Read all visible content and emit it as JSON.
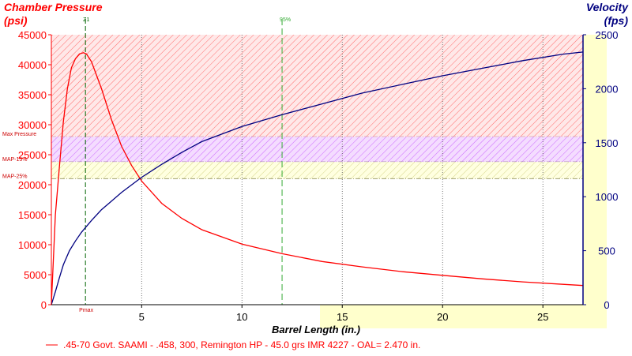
{
  "chart_data": {
    "type": "line",
    "left_axis": {
      "title_line1": "Chamber Pressure",
      "title_line2": "(psi)",
      "range": [
        0,
        45000
      ],
      "ticks": [
        0,
        5000,
        10000,
        15000,
        20000,
        25000,
        30000,
        35000,
        40000,
        45000
      ],
      "tick_labels": [
        "0",
        "5000",
        "10000",
        "15000",
        "20000",
        "25000",
        "30000",
        "35000",
        "40000",
        "45000"
      ],
      "color": "#ff0000"
    },
    "right_axis": {
      "title_line1": "Velocity",
      "title_line2": "(fps)",
      "range": [
        0,
        2500
      ],
      "ticks": [
        0,
        500,
        1000,
        1500,
        2000,
        2500
      ],
      "tick_labels": [
        "0",
        "500",
        "1000",
        "1500",
        "2000",
        "2500"
      ],
      "color": "#000080"
    },
    "x_axis": {
      "label": "Barrel Length (in.)",
      "range": [
        0.5,
        27
      ],
      "ticks": [
        5,
        10,
        15,
        20,
        25
      ],
      "tick_labels": [
        "5",
        "10",
        "15",
        "20",
        "25"
      ]
    },
    "bands": [
      {
        "name": "max-pressure-band",
        "label": "Max Pressure",
        "from": 28000,
        "to": 45000,
        "color": "#ff0000",
        "pattern": "hatch"
      },
      {
        "name": "map-15-band",
        "label": "MAP-15%",
        "from": 23800,
        "to": 28000,
        "color": "#cc00ff",
        "pattern": "hatch"
      },
      {
        "name": "map-25-band",
        "label": "MAP-25%",
        "from": 21000,
        "to": 23800,
        "color": "#e6e68c",
        "pattern": "hatch"
      }
    ],
    "markers": [
      {
        "name": "z1",
        "label": "Z1",
        "x": 2.2,
        "color": "#006400"
      },
      {
        "name": "95-percent",
        "label": "95%",
        "x": 12.0,
        "color": "#33aa33"
      }
    ],
    "pmax_label": "Pmax",
    "series": [
      {
        "name": "pressure",
        "axis": "left",
        "color": "#ff0000",
        "x": [
          0.5,
          0.7,
          0.9,
          1.1,
          1.3,
          1.5,
          1.7,
          1.9,
          2.1,
          2.25,
          2.5,
          3,
          3.5,
          4,
          4.5,
          5,
          6,
          7,
          8,
          10,
          12,
          14,
          16,
          18,
          20,
          22,
          24,
          26,
          27
        ],
        "values": [
          0,
          15000,
          23000,
          30500,
          36000,
          39500,
          41000,
          41800,
          42000,
          41800,
          40500,
          36000,
          30800,
          26400,
          23200,
          20600,
          16900,
          14400,
          12500,
          10100,
          8500,
          7200,
          6300,
          5500,
          4900,
          4300,
          3800,
          3400,
          3200
        ]
      },
      {
        "name": "velocity",
        "axis": "right",
        "color": "#000080",
        "x": [
          0.5,
          0.7,
          0.9,
          1.1,
          1.4,
          1.7,
          2,
          2.5,
          3,
          3.5,
          4,
          5,
          6,
          7,
          8,
          10,
          12,
          14,
          16,
          18,
          20,
          22,
          24,
          26,
          27
        ],
        "values": [
          0,
          120,
          250,
          370,
          500,
          590,
          670,
          780,
          880,
          960,
          1040,
          1180,
          1300,
          1410,
          1510,
          1650,
          1760,
          1860,
          1960,
          2040,
          2120,
          2190,
          2260,
          2320,
          2340
        ]
      }
    ],
    "legend": {
      "label": ".45-70 Govt. SAAMI - .458, 300, Remington HP - 45.0 grs IMR 4227 - OAL= 2.470 in.",
      "color": "#ff0000"
    }
  }
}
